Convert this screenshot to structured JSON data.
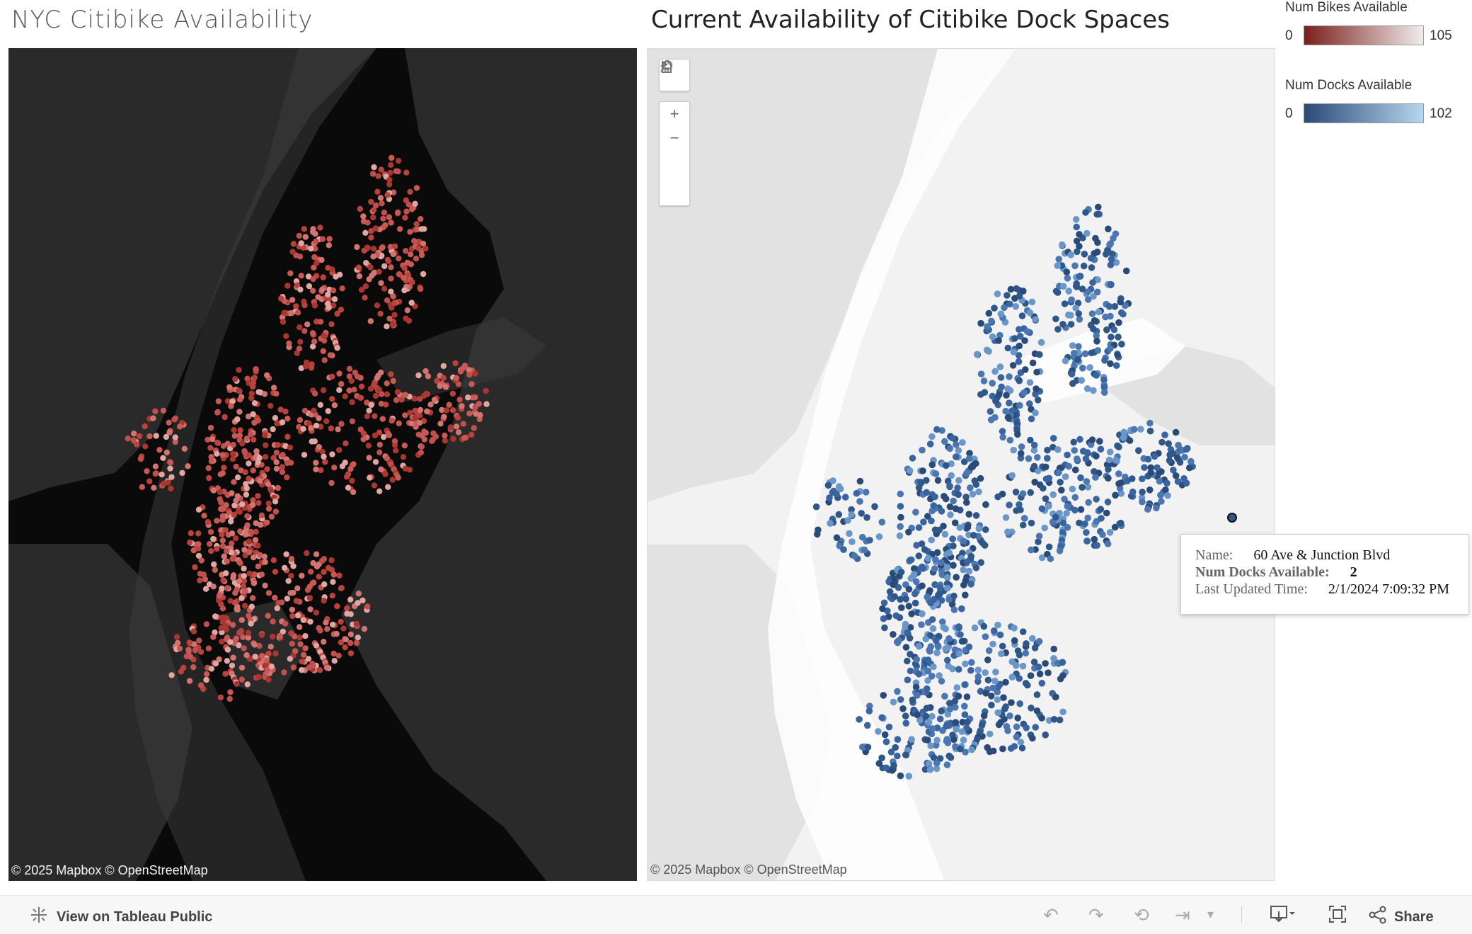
{
  "left_panel": {
    "title": "NYC Citibike Availability",
    "attribution": "© 2025 Mapbox  © OpenStreetMap"
  },
  "right_panel": {
    "title": "Current Availability of Citibike Dock Spaces",
    "attribution": "© 2025 Mapbox  © OpenStreetMap"
  },
  "map_tools": [
    "search-icon",
    "zoom-in-icon",
    "zoom-out-icon",
    "home-icon",
    "play-icon"
  ],
  "legends": {
    "bikes": {
      "title": "Num Bikes Available",
      "min": "0",
      "max": "105",
      "color_low": "#7a1f1a",
      "color_high": "#f2ecec"
    },
    "docks": {
      "title": "Num Docks Available",
      "min": "0",
      "max": "102",
      "color_low": "#2a4a78",
      "color_high": "#b7d6ee"
    }
  },
  "tooltip": {
    "name_label": "Name:",
    "name_value": "60 Ave & Junction Blvd",
    "docks_label": "Num Docks Available:",
    "docks_value": "2",
    "updated_label": "Last Updated Time:",
    "updated_value": "2/1/2024 7:09:32 PM"
  },
  "footer": {
    "view_label": "View on Tableau Public",
    "share_label": "Share",
    "icons": [
      "undo-icon",
      "redo-icon",
      "revert-icon",
      "pause-icon",
      "dropdown-icon",
      "download-icon",
      "fullscreen-icon",
      "share-icon"
    ]
  },
  "colors": {
    "dark_map_bg": "#0a0a0a",
    "dark_land": "#2b2b2b",
    "light_map_bg": "#f2f2f2",
    "light_land": "#e4e4e4",
    "bike_dot": "#c0504d",
    "dock_dot": "#2f5889"
  }
}
